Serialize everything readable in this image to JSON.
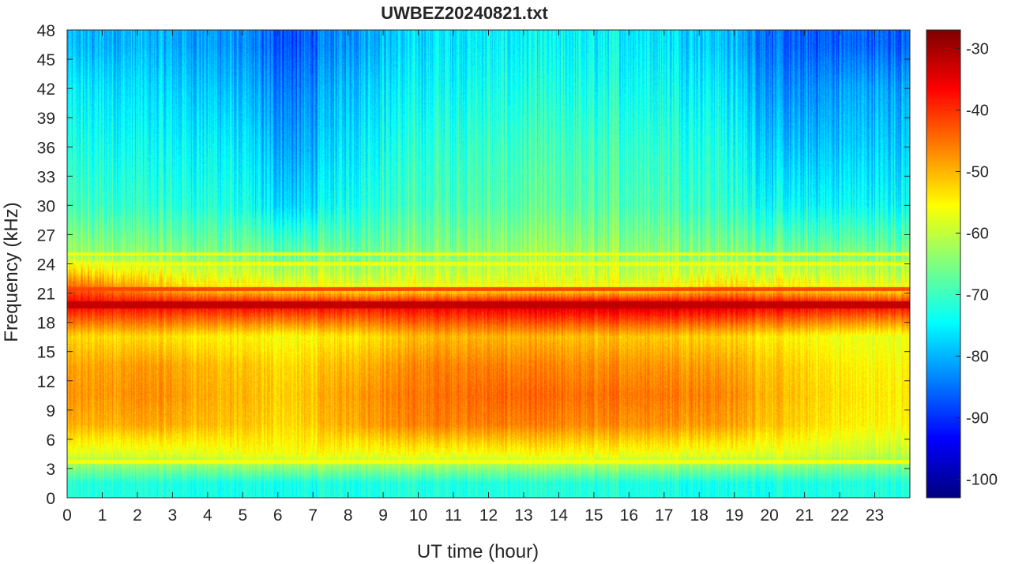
{
  "chart_data": {
    "type": "heatmap",
    "title": "UWBEZ20240821.txt",
    "xlabel": "UT time (hour)",
    "ylabel": "Frequency (kHz)",
    "xlim": [
      0,
      24
    ],
    "ylim": [
      0,
      48
    ],
    "clim": [
      -103,
      -27
    ],
    "colormap": "jet",
    "x_ticks": [
      0,
      1,
      2,
      3,
      4,
      5,
      6,
      7,
      8,
      9,
      10,
      11,
      12,
      13,
      14,
      15,
      16,
      17,
      18,
      19,
      20,
      21,
      22,
      23
    ],
    "y_ticks": [
      0,
      3,
      6,
      9,
      12,
      15,
      18,
      21,
      24,
      27,
      30,
      33,
      36,
      39,
      42,
      45,
      48
    ],
    "colorbar_ticks": [
      -30,
      -40,
      -50,
      -60,
      -70,
      -80,
      -90,
      -100
    ],
    "x_hours": [
      0.5,
      2.5,
      4.5,
      6.5,
      8.5,
      10.5,
      12.5,
      14.5,
      16.5,
      18.5,
      20.5,
      22.5
    ],
    "y_freqs_khz": [
      1.5,
      4.5,
      7.5,
      10.5,
      13.5,
      16.5,
      19.8,
      21.5,
      25,
      30,
      36,
      42,
      46.5
    ],
    "z_db": [
      [
        -72,
        -72,
        -73,
        -73,
        -72,
        -72,
        -72,
        -72,
        -72,
        -73,
        -73,
        -72
      ],
      [
        -58,
        -58,
        -57,
        -56,
        -56,
        -56,
        -56,
        -56,
        -56,
        -57,
        -58,
        -60
      ],
      [
        -50,
        -49,
        -51,
        -53,
        -48,
        -46,
        -46,
        -47,
        -47,
        -48,
        -52,
        -55
      ],
      [
        -48,
        -47,
        -50,
        -52,
        -47,
        -45,
        -44,
        -45,
        -45,
        -46,
        -51,
        -54
      ],
      [
        -49,
        -48,
        -51,
        -53,
        -49,
        -46,
        -46,
        -47,
        -47,
        -48,
        -52,
        -55
      ],
      [
        -53,
        -53,
        -55,
        -56,
        -53,
        -50,
        -50,
        -51,
        -51,
        -52,
        -55,
        -57
      ],
      [
        -36,
        -36,
        -36,
        -36,
        -36,
        -35,
        -34,
        -33,
        -32,
        -33,
        -35,
        -36
      ],
      [
        -44,
        -50,
        -54,
        -56,
        -56,
        -56,
        -56,
        -56,
        -56,
        -52,
        -54,
        -56
      ],
      [
        -63,
        -64,
        -65,
        -67,
        -65,
        -64,
        -63,
        -63,
        -63,
        -64,
        -66,
        -65
      ],
      [
        -70,
        -71,
        -72,
        -78,
        -71,
        -69,
        -68,
        -68,
        -68,
        -70,
        -75,
        -74
      ],
      [
        -73,
        -74,
        -75,
        -82,
        -74,
        -71,
        -70,
        -70,
        -70,
        -72,
        -80,
        -78
      ],
      [
        -76,
        -77,
        -79,
        -85,
        -77,
        -74,
        -73,
        -73,
        -73,
        -75,
        -84,
        -81
      ],
      [
        -80,
        -80,
        -82,
        -88,
        -80,
        -76,
        -75,
        -75,
        -75,
        -78,
        -87,
        -86
      ]
    ],
    "lines_khz": [
      {
        "freq": 19.8,
        "db": -32,
        "style": "strong"
      },
      {
        "freq": 21.4,
        "db": -42,
        "style": "medium"
      },
      {
        "freq": 24.0,
        "db": -57,
        "style": "weak"
      },
      {
        "freq": 25.0,
        "db": -57,
        "style": "weak"
      },
      {
        "freq": 3.7,
        "db": -56,
        "style": "weak"
      }
    ]
  }
}
